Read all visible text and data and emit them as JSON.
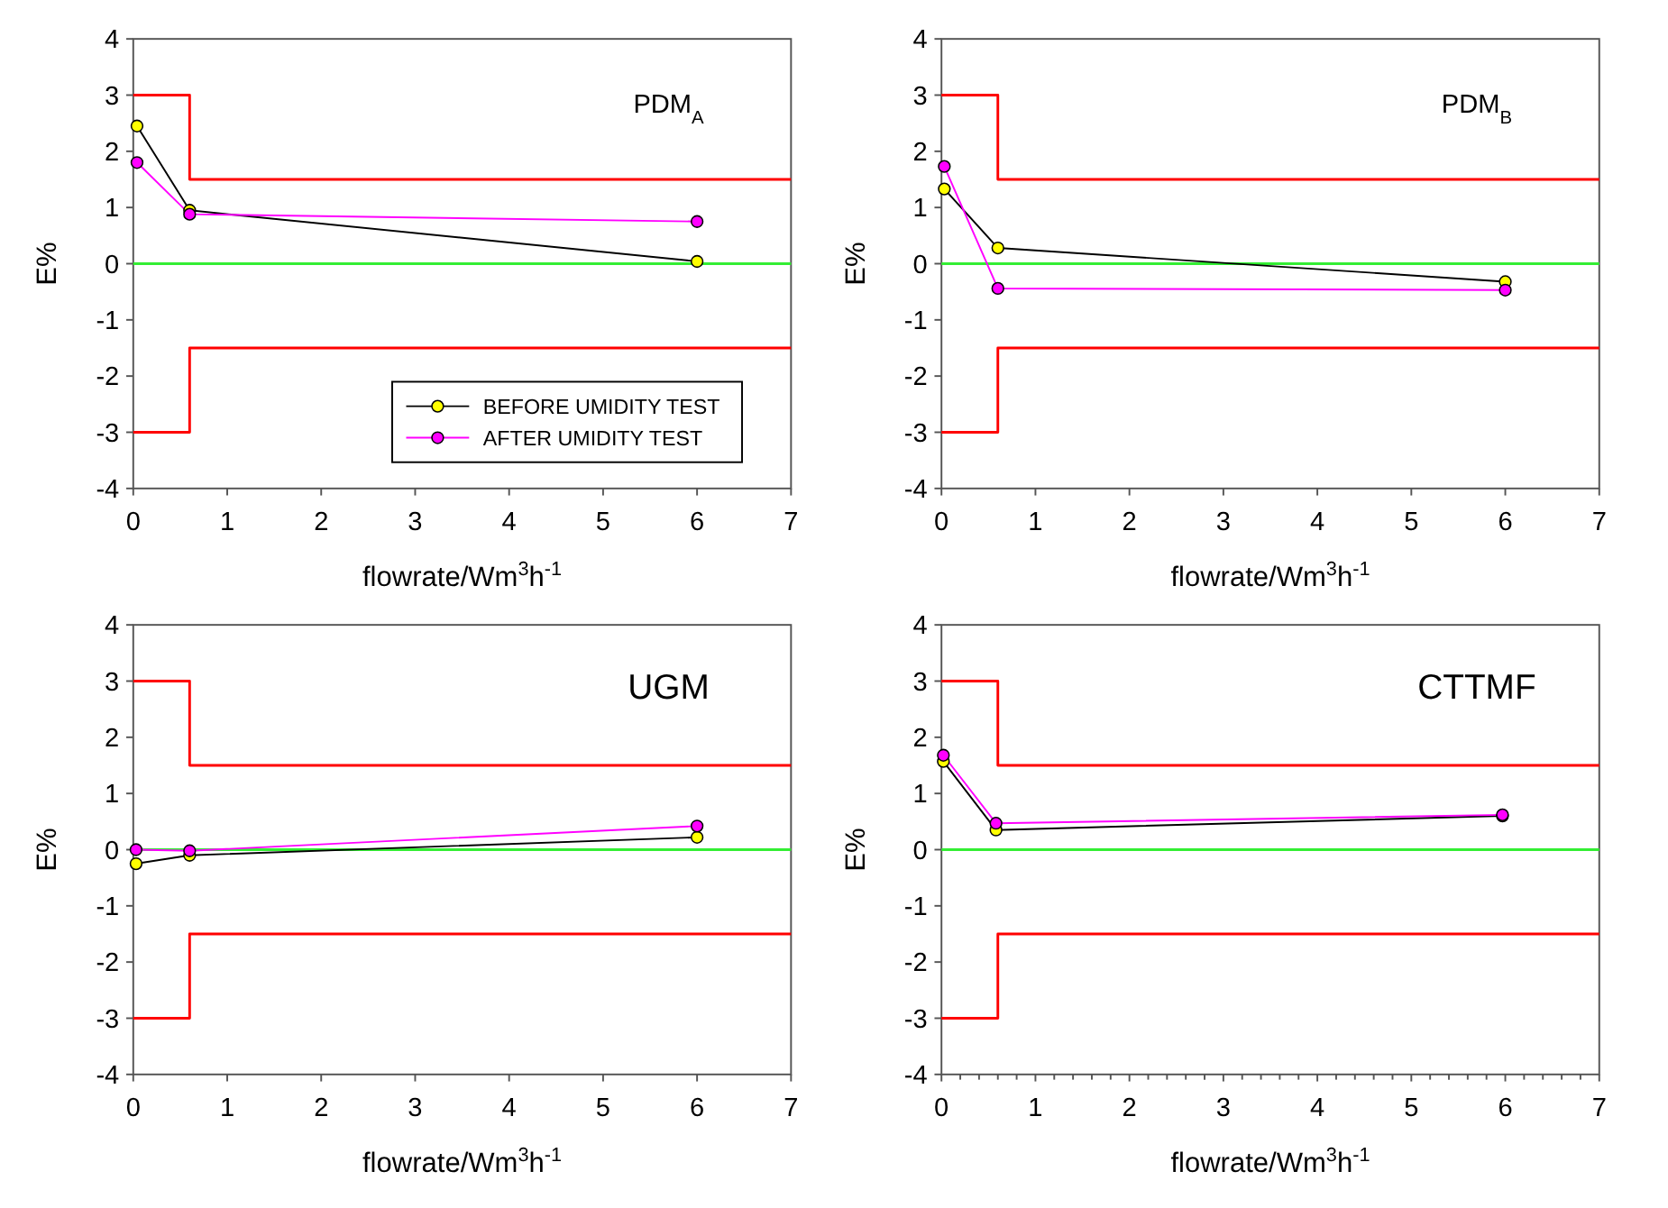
{
  "chart_data": [
    {
      "type": "line",
      "title": "PDM$_{A}$",
      "xlabel": "flowrate/Wm$^{3}$h$^{-1}$",
      "ylabel": "E%",
      "xlim": [
        0,
        7
      ],
      "xticks": [
        0,
        1,
        2,
        3,
        4,
        5,
        6,
        7
      ],
      "ylim": [
        -4,
        4
      ],
      "yticks": [
        -4,
        -3,
        -2,
        -1,
        0,
        1,
        2,
        3,
        4
      ],
      "marker": "circle",
      "legend": "bottom right",
      "ref_lines": [
        {
          "axis": "y",
          "value": 0,
          "color": "#33ee33"
        }
      ],
      "series": [
        {
          "type": "step",
          "color": "#ff0000",
          "marker": "none",
          "x": [
            0,
            0.6,
            7
          ],
          "values": [
            3,
            1.5,
            1.5
          ]
        },
        {
          "type": "step",
          "color": "#ff0000",
          "marker": "none",
          "x": [
            0,
            0.6,
            7
          ],
          "values": [
            -3,
            -1.5,
            -1.5
          ]
        },
        {
          "name": "BEFORE UMIDITY TEST",
          "color": "#000000",
          "colors": [
            "#ffff00",
            "#ffff00",
            "#ffff00"
          ],
          "x": [
            0.04,
            0.6,
            6
          ],
          "values": [
            2.45,
            0.95,
            0.04
          ]
        },
        {
          "name": "AFTER UMIDITY TEST",
          "color": "#ff00ff",
          "colors": [
            "#ff00ff",
            "#ff00ff",
            "#ff00ff"
          ],
          "x": [
            0.04,
            0.6,
            6
          ],
          "values": [
            1.8,
            0.88,
            0.75
          ]
        }
      ]
    },
    {
      "type": "line",
      "title": "PDM$_{B}$",
      "xlabel": "flowrate/Wm$^{3}$h$^{-1}$",
      "ylabel": "E%",
      "xlim": [
        0,
        7
      ],
      "xticks": [
        0,
        1,
        2,
        3,
        4,
        5,
        6,
        7
      ],
      "ylim": [
        -4,
        4
      ],
      "yticks": [
        -4,
        -3,
        -2,
        -1,
        0,
        1,
        2,
        3,
        4
      ],
      "marker": "circle",
      "ref_lines": [
        {
          "axis": "y",
          "value": 0,
          "color": "#33ee33"
        }
      ],
      "series": [
        {
          "type": "step",
          "color": "#ff0000",
          "marker": "none",
          "x": [
            0,
            0.6,
            7
          ],
          "values": [
            3,
            1.5,
            1.5
          ]
        },
        {
          "type": "step",
          "color": "#ff0000",
          "marker": "none",
          "x": [
            0,
            0.6,
            7
          ],
          "values": [
            -3,
            -1.5,
            -1.5
          ]
        },
        {
          "color": "#000000",
          "colors": [
            "#ffff00",
            "#ffff00",
            "#ffff00"
          ],
          "x": [
            0.03,
            0.6,
            6
          ],
          "values": [
            1.33,
            0.28,
            -0.32
          ]
        },
        {
          "color": "#ff00ff",
          "colors": [
            "#ff00ff",
            "#ff00ff",
            "#ff00ff"
          ],
          "x": [
            0.03,
            0.6,
            6
          ],
          "values": [
            1.73,
            -0.44,
            -0.47
          ]
        }
      ]
    },
    {
      "type": "line",
      "title": "UGM",
      "xlabel": "flowrate/Wm$^{3}$h$^{-1}$",
      "ylabel": "E%",
      "xlim": [
        0,
        7
      ],
      "xticks": [
        0,
        1,
        2,
        3,
        4,
        5,
        6,
        7
      ],
      "ylim": [
        -4,
        4
      ],
      "yticks": [
        -4,
        -3,
        -2,
        -1,
        0,
        1,
        2,
        3,
        4
      ],
      "marker": "circle",
      "ref_lines": [
        {
          "axis": "y",
          "value": 0,
          "color": "#33ee33"
        }
      ],
      "series": [
        {
          "type": "step",
          "color": "#ff0000",
          "marker": "none",
          "x": [
            0,
            0.6,
            7
          ],
          "values": [
            3,
            1.5,
            1.5
          ]
        },
        {
          "type": "step",
          "color": "#ff0000",
          "marker": "none",
          "x": [
            0,
            0.6,
            7
          ],
          "values": [
            -3,
            -1.5,
            -1.5
          ]
        },
        {
          "color": "#000000",
          "colors": [
            "#ffff00",
            "#ffff00",
            "#ffff00"
          ],
          "x": [
            0.03,
            0.6,
            6
          ],
          "values": [
            -0.25,
            -0.1,
            0.22
          ]
        },
        {
          "color": "#ff00ff",
          "colors": [
            "#ff00ff",
            "#ff00ff",
            "#ff00ff"
          ],
          "x": [
            0.03,
            0.6,
            6
          ],
          "values": [
            0,
            -0.02,
            0.42
          ]
        }
      ]
    },
    {
      "type": "line",
      "title": "CTTMF",
      "xlabel": "flowrate/Wm$^{3}$h$^{-1}$",
      "ylabel": "E%",
      "xlim": [
        0,
        7
      ],
      "xticks": [
        0,
        {
          "value": 0.2,
          "label": null
        },
        {
          "value": 0.4,
          "label": null
        },
        {
          "value": 0.6,
          "label": null
        },
        {
          "value": 0.8,
          "label": null
        },
        1,
        {
          "value": 1.2,
          "label": null
        },
        {
          "value": 1.4,
          "label": null
        },
        {
          "value": 1.6,
          "label": null
        },
        {
          "value": 1.8,
          "label": null
        },
        2,
        {
          "value": 2.2,
          "label": null
        },
        {
          "value": 2.4,
          "label": null
        },
        {
          "value": 2.6,
          "label": null
        },
        {
          "value": 2.8,
          "label": null
        },
        3,
        {
          "value": 3.2,
          "label": null
        },
        {
          "value": 3.4,
          "label": null
        },
        {
          "value": 3.6,
          "label": null
        },
        {
          "value": 3.8,
          "label": null
        },
        4,
        {
          "value": 4.2,
          "label": null
        },
        {
          "value": 4.4,
          "label": null
        },
        {
          "value": 4.6,
          "label": null
        },
        {
          "value": 4.8,
          "label": null
        },
        5,
        {
          "value": 5.2,
          "label": null
        },
        {
          "value": 5.4,
          "label": null
        },
        {
          "value": 5.6,
          "label": null
        },
        {
          "value": 5.8,
          "label": null
        },
        6,
        {
          "value": 6.2,
          "label": null
        },
        {
          "value": 6.4,
          "label": null
        },
        {
          "value": 6.6,
          "label": null
        },
        {
          "value": 6.8,
          "label": null
        },
        7
      ],
      "ylim": [
        -4,
        4
      ],
      "yticks": [
        -4,
        -3,
        -2,
        -1,
        0,
        1,
        2,
        3,
        4
      ],
      "marker": "circle",
      "ref_lines": [
        {
          "axis": "y",
          "value": 0,
          "color": "#33ee33"
        }
      ],
      "series": [
        {
          "type": "step",
          "color": "#ff0000",
          "marker": "none",
          "x": [
            0,
            0.6,
            7
          ],
          "values": [
            3,
            1.5,
            1.5
          ]
        },
        {
          "type": "step",
          "color": "#ff0000",
          "marker": "none",
          "x": [
            0,
            0.6,
            7
          ],
          "values": [
            -3,
            -1.5,
            -1.5
          ]
        },
        {
          "color": "#000000",
          "colors": [
            "#ffff00",
            "#ffff00",
            "#ffff00"
          ],
          "x": [
            0.02,
            0.58,
            5.97
          ],
          "values": [
            1.57,
            0.35,
            0.6
          ]
        },
        {
          "color": "#ff00ff",
          "colors": [
            "#ff00ff",
            "#ff00ff",
            "#ff00ff"
          ],
          "x": [
            0.02,
            0.58,
            5.97
          ],
          "values": [
            1.68,
            0.47,
            0.62
          ]
        }
      ]
    }
  ]
}
